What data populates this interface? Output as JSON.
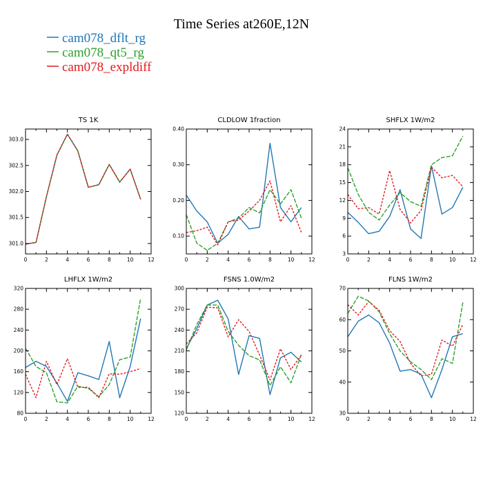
{
  "title": "Time Series at260E,12N",
  "colors": {
    "dflt": "#1f77b4",
    "qt5": "#2ca02c",
    "expldiff": "#e41a1c"
  },
  "legend": [
    {
      "label": "cam078_dflt_rg",
      "color": "#1f77b4",
      "dash": "solid"
    },
    {
      "label": "cam078_qt5_rg",
      "color": "#2ca02c",
      "dash": "dashed"
    },
    {
      "label": "cam078_expldiff",
      "color": "#e41a1c",
      "dash": "dotted"
    }
  ],
  "chart_data": [
    {
      "type": "line",
      "title": "TS   1K",
      "x": [
        0,
        1,
        2,
        3,
        4,
        5,
        6,
        7,
        8,
        9,
        10,
        11
      ],
      "xlim": [
        0,
        12
      ],
      "xticks": [
        0,
        2,
        4,
        6,
        8,
        10,
        12
      ],
      "ylim": [
        300.8,
        303.2
      ],
      "yticks": [
        "301.0",
        "301.5",
        "302.0",
        "302.5",
        "303.0"
      ],
      "series": [
        {
          "name": "cam078_dflt_rg",
          "values": [
            300.99,
            301.02,
            301.9,
            302.7,
            303.1,
            302.78,
            302.08,
            302.13,
            302.52,
            302.18,
            302.43,
            301.85
          ]
        },
        {
          "name": "cam078_qt5_rg",
          "values": [
            300.99,
            301.02,
            301.9,
            302.7,
            303.1,
            302.78,
            302.08,
            302.13,
            302.52,
            302.18,
            302.43,
            301.85
          ]
        },
        {
          "name": "cam078_expldiff",
          "values": [
            300.99,
            301.02,
            301.9,
            302.7,
            303.1,
            302.78,
            302.08,
            302.13,
            302.52,
            302.18,
            302.43,
            301.85
          ]
        }
      ]
    },
    {
      "type": "line",
      "title": "CLDLOW   1fraction",
      "x": [
        0,
        1,
        2,
        3,
        4,
        5,
        6,
        7,
        8,
        9,
        10,
        11
      ],
      "xlim": [
        0,
        12
      ],
      "xticks": [
        0,
        2,
        4,
        6,
        8,
        10,
        12
      ],
      "ylim": [
        0.05,
        0.4
      ],
      "yticks": [
        "0.10",
        "0.20",
        "0.30",
        "0.40"
      ],
      "series": [
        {
          "name": "cam078_dflt_rg",
          "values": [
            0.215,
            0.17,
            0.14,
            0.08,
            0.105,
            0.155,
            0.12,
            0.125,
            0.36,
            0.18,
            0.14,
            0.18
          ]
        },
        {
          "name": "cam078_qt5_rg",
          "values": [
            0.16,
            0.08,
            0.06,
            0.08,
            0.14,
            0.15,
            0.18,
            0.165,
            0.23,
            0.19,
            0.23,
            0.15
          ]
        },
        {
          "name": "cam078_expldiff",
          "values": [
            0.11,
            0.115,
            0.125,
            0.075,
            0.14,
            0.145,
            0.17,
            0.2,
            0.255,
            0.14,
            0.185,
            0.11
          ]
        }
      ]
    },
    {
      "type": "line",
      "title": "SHFLX   1W/m2",
      "x": [
        0,
        1,
        2,
        3,
        4,
        5,
        6,
        7,
        8,
        9,
        10,
        11
      ],
      "xlim": [
        0,
        12
      ],
      "xticks": [
        0,
        2,
        4,
        6,
        8,
        10,
        12
      ],
      "ylim": [
        3,
        24
      ],
      "yticks": [
        "3",
        "6",
        "9",
        "12",
        "15",
        "18",
        "21",
        "24"
      ],
      "series": [
        {
          "name": "cam078_dflt_rg",
          "values": [
            10.0,
            8.3,
            6.4,
            6.8,
            9.3,
            13.8,
            7.2,
            5.6,
            17.8,
            9.7,
            10.8,
            14.2
          ]
        },
        {
          "name": "cam078_qt5_rg",
          "values": [
            17.5,
            13.0,
            10.0,
            8.7,
            11.2,
            13.3,
            11.8,
            11.0,
            18.0,
            19.2,
            19.5,
            22.8
          ]
        },
        {
          "name": "cam078_expldiff",
          "values": [
            13.0,
            10.6,
            10.8,
            9.7,
            17.0,
            10.5,
            8.2,
            10.3,
            17.6,
            15.8,
            16.2,
            14.3
          ]
        }
      ]
    },
    {
      "type": "line",
      "title": "LHFLX   1W/m2",
      "x": [
        0,
        1,
        2,
        3,
        4,
        5,
        6,
        7,
        8,
        9,
        10,
        11
      ],
      "xlim": [
        0,
        12
      ],
      "xticks": [
        0,
        2,
        4,
        6,
        8,
        10,
        12
      ],
      "ylim": [
        80,
        320
      ],
      "yticks": [
        "80",
        "120",
        "160",
        "200",
        "240",
        "280",
        "320"
      ],
      "series": [
        {
          "name": "cam078_dflt_rg",
          "values": [
            168,
            180,
            170,
            138,
            103,
            158,
            152,
            145,
            218,
            110,
            170,
            262
          ]
        },
        {
          "name": "cam078_qt5_rg",
          "values": [
            205,
            170,
            158,
            102,
            100,
            132,
            128,
            112,
            135,
            183,
            188,
            301
          ]
        },
        {
          "name": "cam078_expldiff",
          "values": [
            155,
            110,
            180,
            135,
            185,
            130,
            130,
            110,
            156,
            155,
            160,
            166
          ]
        }
      ]
    },
    {
      "type": "line",
      "title": "FSNS   1.0W/m2",
      "x": [
        0,
        1,
        2,
        3,
        4,
        5,
        6,
        7,
        8,
        9,
        10,
        11
      ],
      "xlim": [
        0,
        12
      ],
      "xticks": [
        0,
        2,
        4,
        6,
        8,
        10,
        12
      ],
      "ylim": [
        120,
        300
      ],
      "yticks": [
        "120",
        "150",
        "180",
        "210",
        "240",
        "270",
        "300"
      ],
      "series": [
        {
          "name": "cam078_dflt_rg",
          "values": [
            213,
            242,
            276,
            283,
            256,
            176,
            232,
            228,
            147,
            200,
            208,
            194
          ]
        },
        {
          "name": "cam078_qt5_rg",
          "values": [
            211,
            248,
            276,
            276,
            238,
            218,
            203,
            197,
            160,
            187,
            164,
            205
          ]
        },
        {
          "name": "cam078_expldiff",
          "values": [
            220,
            236,
            273,
            272,
            230,
            255,
            238,
            204,
            168,
            213,
            183,
            204
          ]
        }
      ]
    },
    {
      "type": "line",
      "title": "FLNS   1W/m2",
      "x": [
        0,
        1,
        2,
        3,
        4,
        5,
        6,
        7,
        8,
        9,
        10,
        11
      ],
      "xlim": [
        0,
        12
      ],
      "xticks": [
        0,
        2,
        4,
        6,
        8,
        10,
        12
      ],
      "ylim": [
        30,
        70
      ],
      "yticks": [
        "30",
        "40",
        "50",
        "60",
        "70"
      ],
      "series": [
        {
          "name": "cam078_dflt_rg",
          "values": [
            54.5,
            59.5,
            61.5,
            59.0,
            52.5,
            43.5,
            44.0,
            42.5,
            35.0,
            44.0,
            54.5,
            55.5
          ]
        },
        {
          "name": "cam078_qt5_rg",
          "values": [
            62.0,
            67.5,
            66.0,
            62.5,
            55.5,
            50.0,
            46.5,
            44.0,
            40.8,
            47.5,
            46.0,
            65.5
          ]
        },
        {
          "name": "cam078_expldiff",
          "values": [
            64.8,
            61.5,
            65.8,
            63.0,
            56.5,
            53.0,
            46.0,
            42.0,
            42.5,
            53.5,
            51.5,
            58.5
          ]
        }
      ]
    }
  ]
}
